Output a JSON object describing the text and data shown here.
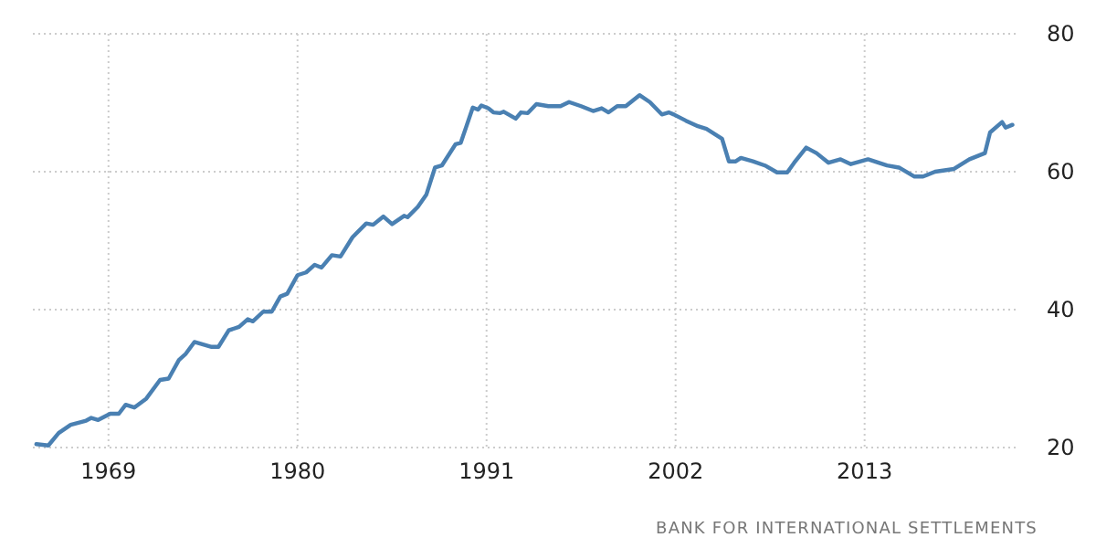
{
  "chart_data": {
    "type": "line",
    "x": [
      1964.8,
      1965.5,
      1966.1,
      1966.8,
      1967.7,
      1968.0,
      1968.4,
      1969.1,
      1969.6,
      1970.0,
      1970.5,
      1971.2,
      1972.0,
      1972.5,
      1973.1,
      1973.5,
      1974.0,
      1975.0,
      1975.4,
      1976.0,
      1976.6,
      1977.1,
      1977.4,
      1978.0,
      1978.5,
      1979.0,
      1979.4,
      1980.0,
      1980.5,
      1981.0,
      1981.4,
      1982.0,
      1982.5,
      1983.2,
      1984.0,
      1984.4,
      1985.0,
      1985.5,
      1986.2,
      1986.4,
      1987.0,
      1987.5,
      1988.0,
      1988.4,
      1989.2,
      1989.5,
      1990.2,
      1990.5,
      1990.7,
      1991.1,
      1991.4,
      1991.8,
      1992.0,
      1992.7,
      1993.0,
      1993.4,
      1993.9,
      1994.6,
      1995.3,
      1995.8,
      1996.5,
      1997.2,
      1997.7,
      1998.1,
      1998.6,
      1999.1,
      1999.9,
      2000.5,
      2001.2,
      2001.6,
      2001.9,
      2002.6,
      2003.3,
      2003.8,
      2004.7,
      2005.1,
      2005.5,
      2005.8,
      2006.5,
      2007.2,
      2007.9,
      2008.5,
      2008.9,
      2009.6,
      2010.2,
      2010.9,
      2011.6,
      2012.2,
      2013.2,
      2014.3,
      2015.0,
      2015.9,
      2016.4,
      2017.1,
      2018.2,
      2019.1,
      2020.0,
      2020.3,
      2021.0,
      2021.2,
      2021.6
    ],
    "series": [
      {
        "color": "#4a80b2",
        "values": [
          20.5,
          20.3,
          22.1,
          23.3,
          23.9,
          24.3,
          24.0,
          24.9,
          24.9,
          26.2,
          25.8,
          27.1,
          29.8,
          30.0,
          32.7,
          33.6,
          35.3,
          34.6,
          34.6,
          37.0,
          37.5,
          38.6,
          38.3,
          39.7,
          39.7,
          41.9,
          42.3,
          45.0,
          45.4,
          46.5,
          46.1,
          47.9,
          47.7,
          50.5,
          52.5,
          52.3,
          53.5,
          52.4,
          53.6,
          53.4,
          54.9,
          56.7,
          60.6,
          60.9,
          64.0,
          64.2,
          69.3,
          69.0,
          69.6,
          69.2,
          68.6,
          68.5,
          68.7,
          67.7,
          68.6,
          68.5,
          69.8,
          69.5,
          69.5,
          70.1,
          69.5,
          68.8,
          69.2,
          68.6,
          69.5,
          69.5,
          71.1,
          70.1,
          68.3,
          68.6,
          68.3,
          67.4,
          66.6,
          66.2,
          64.8,
          61.5,
          61.5,
          62.0,
          61.5,
          60.9,
          59.9,
          59.9,
          61.3,
          63.5,
          62.7,
          61.3,
          61.8,
          61.1,
          61.8,
          60.9,
          60.6,
          59.3,
          59.3,
          60.0,
          60.4,
          61.8,
          62.7,
          65.7,
          67.2,
          66.4,
          66.8
        ]
      }
    ],
    "xlim": [
      1964.6,
      2022
    ],
    "xticks": [
      1969,
      1980,
      1991,
      2002,
      2013
    ],
    "ylim": [
      20,
      80
    ],
    "yticks": [
      20,
      40,
      60,
      80
    ],
    "grid": true,
    "line_style": "solid",
    "annotations": [
      "BANK FOR INTERNATIONAL SETTLEMENTS"
    ]
  }
}
